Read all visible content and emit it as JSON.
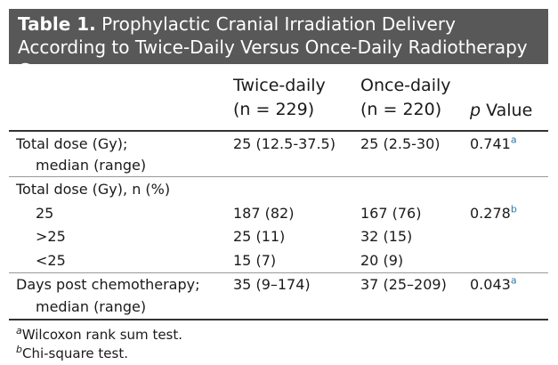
{
  "header": {
    "label": "Table 1.",
    "title": "Prophylactic Cranial Irradiation Delivery According to Twice-Daily Versus Once-Daily Radiotherapy Groups"
  },
  "table": {
    "columns": [
      [
        "Twice-daily",
        "(n = 229)"
      ],
      [
        "Once-daily",
        "(n = 220)"
      ],
      [
        "p Value"
      ]
    ],
    "rows": [
      {
        "label": [
          "Total dose (Gy);",
          "median (range)"
        ],
        "cells": [
          "25 (12.5-37.5)",
          "25 (2.5-30)",
          "0.741"
        ],
        "note": "a"
      },
      {
        "label": [
          "Total dose (Gy), n (%)"
        ]
      },
      {
        "label": [
          "25"
        ],
        "cells": [
          "187 (82)",
          "167 (76)",
          "0.278"
        ],
        "note": "b"
      },
      {
        "label": [
          ">25"
        ],
        "cells": [
          "25 (11)",
          "32 (15)"
        ]
      },
      {
        "label": [
          "<25"
        ],
        "cells": [
          "15 (7)",
          "20 (9)"
        ]
      },
      {
        "label": [
          "Days post chemotherapy;",
          "median (range)"
        ],
        "cells": [
          "35 (9–174)",
          "37 (25–209)",
          "0.043"
        ],
        "note": "a"
      }
    ]
  },
  "footnotes": [
    {
      "mark": "a",
      "text": "Wilcoxon rank sum test."
    },
    {
      "mark": "b",
      "text": "Chi-square test."
    }
  ]
}
